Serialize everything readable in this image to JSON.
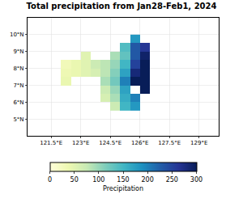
{
  "chart_data": {
    "type": "heatmap",
    "title": "Total precipitation from Jan28-Feb1, 2024",
    "x": [
      121.75,
      122.25,
      122.75,
      123.25,
      123.75,
      124.25,
      124.75,
      125.25,
      125.75,
      126.25,
      126.75
    ],
    "y": [
      5.75,
      6.25,
      6.75,
      7.25,
      7.75,
      8.25,
      8.75,
      9.25,
      9.75
    ],
    "z": [
      [
        null,
        null,
        null,
        null,
        null,
        null,
        70,
        150,
        180,
        null,
        null
      ],
      [
        null,
        null,
        null,
        null,
        null,
        60,
        90,
        160,
        200,
        null,
        null
      ],
      [
        null,
        null,
        null,
        null,
        null,
        70,
        100,
        170,
        null,
        320,
        null
      ],
      [
        null,
        40,
        null,
        null,
        null,
        90,
        120,
        200,
        320,
        340,
        null
      ],
      [
        null,
        35,
        40,
        50,
        60,
        80,
        110,
        170,
        280,
        330,
        null
      ],
      [
        null,
        30,
        40,
        50,
        70,
        80,
        100,
        150,
        250,
        320,
        null
      ],
      [
        null,
        null,
        null,
        50,
        null,
        null,
        90,
        130,
        230,
        290,
        null
      ],
      [
        null,
        null,
        null,
        null,
        null,
        null,
        null,
        140,
        230,
        260,
        null
      ],
      [
        null,
        null,
        null,
        null,
        null,
        null,
        null,
        null,
        180,
        null,
        null
      ]
    ],
    "xlim": [
      120.3,
      130
    ],
    "ylim": [
      4,
      11
    ],
    "xticks": [
      {
        "value": 121.5,
        "label": "121.5°E"
      },
      {
        "value": 123,
        "label": "123°E"
      },
      {
        "value": 124.5,
        "label": "124.5°E"
      },
      {
        "value": 126,
        "label": "126°E"
      },
      {
        "value": 127.5,
        "label": "127.5°E"
      },
      {
        "value": 129,
        "label": "129°E"
      }
    ],
    "yticks": [
      {
        "value": 5,
        "label": "5°N"
      },
      {
        "value": 6,
        "label": "6°N"
      },
      {
        "value": 7,
        "label": "7°N"
      },
      {
        "value": 8,
        "label": "8°N"
      },
      {
        "value": 9,
        "label": "9°N"
      },
      {
        "value": 10,
        "label": "10°N"
      }
    ],
    "grid": true,
    "colorbar": {
      "title": "Precipitation",
      "range": [
        0,
        300
      ],
      "ticks": [
        0,
        50,
        100,
        150,
        200,
        250,
        300
      ]
    }
  }
}
